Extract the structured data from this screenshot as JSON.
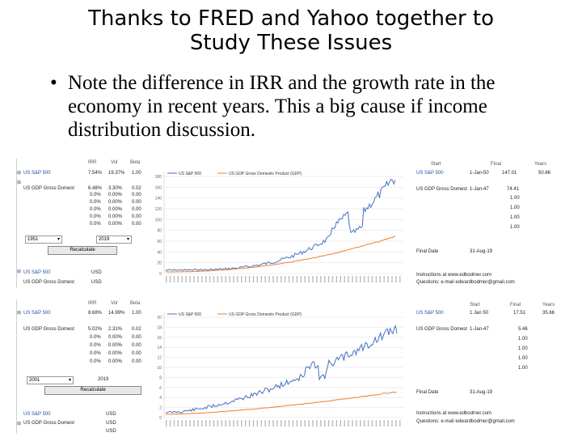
{
  "slide": {
    "title_line1": "Thanks to FRED and Yahoo together to",
    "title_line2": "Study These Issues",
    "bullet_char": "•",
    "bullet_text": "Note the difference in IRR and the growth rate in the economy in recent years.  This a big cause if income distribution discussion."
  },
  "panel1": {
    "headers": {
      "irr": "IRR",
      "vol": "Vol",
      "beta": "Beta"
    },
    "row1": {
      "label": "US S&P 500",
      "irr": "7.54%",
      "vol": "19.37%",
      "beta": "1.00"
    },
    "row2": {
      "label": "US GDP Gross Domest",
      "irr": "6.48%",
      "vol": "3.30%",
      "beta": "0.02"
    },
    "extra_rows": [
      {
        "irr": "0.0%",
        "vol": "0.00%",
        "beta": "0.00"
      },
      {
        "irr": "0.0%",
        "vol": "0.00%",
        "beta": "0.00"
      },
      {
        "irr": "0.0%",
        "vol": "0.00%",
        "beta": "0.00"
      },
      {
        "irr": "0.0%",
        "vol": "0.00%",
        "beta": "0.00"
      },
      {
        "irr": "0.0%",
        "vol": "0.00%",
        "beta": "0.00"
      }
    ],
    "select_start": "1951",
    "select_end": "2019",
    "recalc": "Recalculate",
    "ccy1": {
      "label": "US S&P 500",
      "ccy": "USD"
    },
    "ccy2": {
      "label": "US GDP Gross Domest",
      "ccy": "USD"
    },
    "legend1": "US S&P 500",
    "legend2": "US GDP Gross Domestic Product (GDP)",
    "right_headers": {
      "start": "Start",
      "final": "Final",
      "years": "Years"
    },
    "right_row1": {
      "label": "US S&P 500",
      "start": "1-Jan-50",
      "final": "147.01",
      "years": "50.66"
    },
    "right_row2": {
      "label": "US GDP Gross Domest",
      "start": "1-Jan-47",
      "final": "74.41"
    },
    "right_ones": [
      "1.00",
      "1.00",
      "1.00",
      "1.00"
    ],
    "final_date_label": "Final Date",
    "final_date": "31-Aug-19",
    "instructions": "Instructions at www.edbodmer.com",
    "questions": "Questions: e-mail edwardbodmer@gmail.com",
    "y_ticks": [
      "180",
      "160",
      "140",
      "120",
      "100",
      "80",
      "60",
      "40",
      "20",
      "0"
    ]
  },
  "panel2": {
    "headers": {
      "irr": "IRR",
      "vol": "Vol",
      "beta": "Beta"
    },
    "row1": {
      "label": "US S&P 500",
      "irr": "8.68%",
      "vol": "14.99%",
      "beta": "1.00"
    },
    "row2": {
      "label": "US GDP Gross Domest",
      "irr": "5.02%",
      "vol": "2.31%",
      "beta": "0.02"
    },
    "extra_rows": [
      {
        "irr": "0.0%",
        "vol": "0.00%",
        "beta": "0.00"
      },
      {
        "irr": "0.0%",
        "vol": "0.00%",
        "beta": "0.00"
      },
      {
        "irr": "0.0%",
        "vol": "0.00%",
        "beta": "0.00"
      },
      {
        "irr": "0.0%",
        "vol": "0.00%",
        "beta": "0.00"
      }
    ],
    "select_start": "2001",
    "select_end": "2019",
    "recalc": "Recalculate",
    "ccy1": {
      "label": "US S&P 500",
      "ccy": "USD"
    },
    "ccy2": {
      "label": "US GDP Gross Domest",
      "ccy": "USD"
    },
    "ccy3": {
      "ccy": "USD"
    },
    "legend1": "US S&P 500",
    "legend2": "US GDP Gross Domestic Product (GDP)",
    "right_headers": {
      "start": "Start",
      "final": "Final",
      "years": "Years"
    },
    "right_row1": {
      "label": "US S&P 500",
      "start": "1 Jan 50",
      "final": "17.51",
      "years": "35.66"
    },
    "right_row2": {
      "label": "US GDP Gross Domest",
      "start": "1-Jan-47",
      "final": "5.46"
    },
    "right_ones": [
      "1.00",
      "1.00",
      "1.00",
      "1.00"
    ],
    "final_date_label": "Final Date",
    "final_date": "31-Aug-19",
    "instructions": "Instructions at www.edbodmer.com",
    "questions": "Questions: e-mail edwardbodmer@gmail.com",
    "y_ticks": [
      "20",
      "18",
      "16",
      "14",
      "12",
      "10",
      "8",
      "6",
      "4",
      "2",
      "0"
    ]
  },
  "colors": {
    "sp500": "#4472c4",
    "gdp": "#ed7d31"
  }
}
